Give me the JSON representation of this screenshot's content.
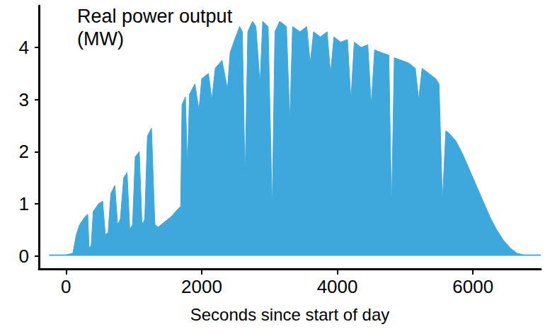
{
  "chart_data": {
    "type": "area",
    "y_label": "Real power output (MW)",
    "x_label": "Seconds since start of day",
    "x": [
      -250,
      0,
      100,
      150,
      200,
      280,
      320,
      340,
      370,
      400,
      480,
      540,
      580,
      620,
      660,
      720,
      760,
      800,
      850,
      900,
      940,
      980,
      1020,
      1080,
      1120,
      1160,
      1200,
      1260,
      1310,
      1360,
      1450,
      1550,
      1650,
      1690,
      1710,
      1760,
      1790,
      1820,
      1900,
      1960,
      2000,
      2100,
      2150,
      2200,
      2300,
      2380,
      2420,
      2500,
      2560,
      2600,
      2640,
      2680,
      2750,
      2800,
      2860,
      2900,
      2980,
      3040,
      3080,
      3150,
      3250,
      3300,
      3340,
      3450,
      3550,
      3600,
      3650,
      3750,
      3850,
      3900,
      3950,
      4050,
      4150,
      4200,
      4250,
      4350,
      4450,
      4500,
      4550,
      4650,
      4760,
      4800,
      4840,
      4950,
      5050,
      5150,
      5200,
      5250,
      5350,
      5450,
      5500,
      5550,
      5600,
      5650,
      5750,
      5850,
      5950,
      6050,
      6150,
      6250,
      6350,
      6450,
      6550,
      6650,
      6750,
      7000
    ],
    "values": [
      0.02,
      0.02,
      0.05,
      0.4,
      0.6,
      0.75,
      0.8,
      0.15,
      0.2,
      0.85,
      1.0,
      1.05,
      0.4,
      0.45,
      1.2,
      1.35,
      0.6,
      0.7,
      1.5,
      1.6,
      0.5,
      0.6,
      1.9,
      2.0,
      0.6,
      0.7,
      2.3,
      2.45,
      0.6,
      0.55,
      0.65,
      0.75,
      0.9,
      0.95,
      2.9,
      3.05,
      1.7,
      3.1,
      3.3,
      2.8,
      3.4,
      3.5,
      3.0,
      3.6,
      3.75,
      3.2,
      3.9,
      4.2,
      4.4,
      4.3,
      1.5,
      4.3,
      4.5,
      4.4,
      3.3,
      4.5,
      4.4,
      0.9,
      4.3,
      4.5,
      4.4,
      2.6,
      4.4,
      4.3,
      4.4,
      3.7,
      4.3,
      4.2,
      4.3,
      3.5,
      4.2,
      4.1,
      4.15,
      3.0,
      4.1,
      4.0,
      4.05,
      2.9,
      3.95,
      3.9,
      3.85,
      0.9,
      3.8,
      3.75,
      3.7,
      3.6,
      3.0,
      3.6,
      3.5,
      3.4,
      3.3,
      1.05,
      2.4,
      2.35,
      2.2,
      1.95,
      1.65,
      1.35,
      1.05,
      0.75,
      0.5,
      0.3,
      0.15,
      0.05,
      0.02,
      0.02
    ],
    "color": "#3ea8dc",
    "xlim": [
      -400,
      7000
    ],
    "xticks": [
      0,
      2000,
      4000,
      6000
    ],
    "ylim": [
      -0.25,
      4.8
    ],
    "yticks": [
      0,
      1,
      2,
      3,
      4
    ],
    "grid": false
  }
}
